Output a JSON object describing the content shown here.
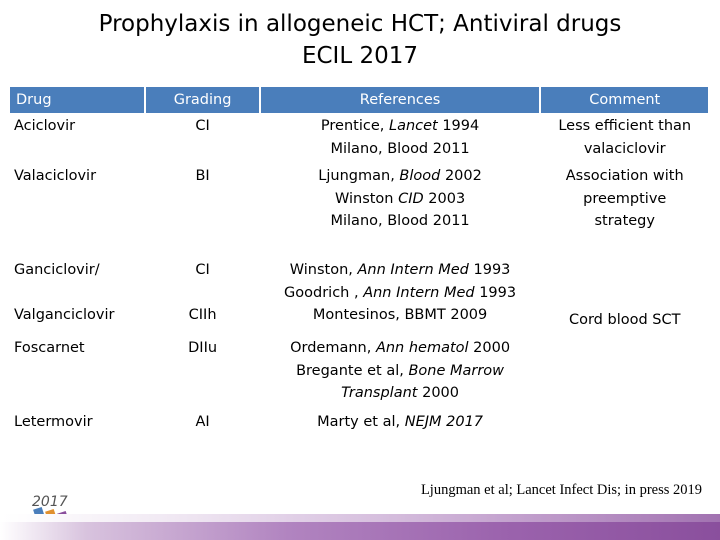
{
  "slide": {
    "title_line1": "Prophylaxis in allogeneic HCT; Antiviral drugs",
    "title_line2": "ECIL 2017",
    "citation": "Ljungman et al; Lancet Infect Dis; in press 2019",
    "logo_text": "2017"
  },
  "table": {
    "headers": [
      "Drug",
      "Grading",
      "References",
      "Comment"
    ],
    "rows": [
      {
        "drug": "Aciclovir",
        "grading": "CI",
        "refs": [
          "Prentice, Lancet 1994",
          "Milano, Blood 2011"
        ],
        "comment": [
          "Less efficient than",
          "valaciclovir"
        ]
      },
      {
        "drug": "Valaciclovir",
        "grading": "BI",
        "refs": [
          "Ljungman, Blood 2002",
          "Winston CID 2003",
          "Milano, Blood 2011"
        ],
        "comment": [
          "Association with",
          "preemptive",
          "strategy"
        ]
      },
      {
        "drug_line1": "Ganciclovir/",
        "drug_line2": "Valganciclovir",
        "grading_line1": "CI",
        "grading_line2": "CIIh",
        "refs": [
          "Winston, Ann Intern Med 1993",
          "Goodrich , Ann Intern Med 1993",
          "Montesinos, BBMT 2009"
        ],
        "comment": "Cord blood SCT"
      },
      {
        "drug": "Foscarnet",
        "grading": "DIIu",
        "refs": [
          "Ordemann, Ann hematol 2000",
          "Bregante et al, Bone Marrow",
          "Transplant 2000"
        ]
      },
      {
        "drug": "Letermovir",
        "grading": "AI",
        "refs": [
          "Marty et al, NEJM 2017"
        ]
      }
    ]
  }
}
